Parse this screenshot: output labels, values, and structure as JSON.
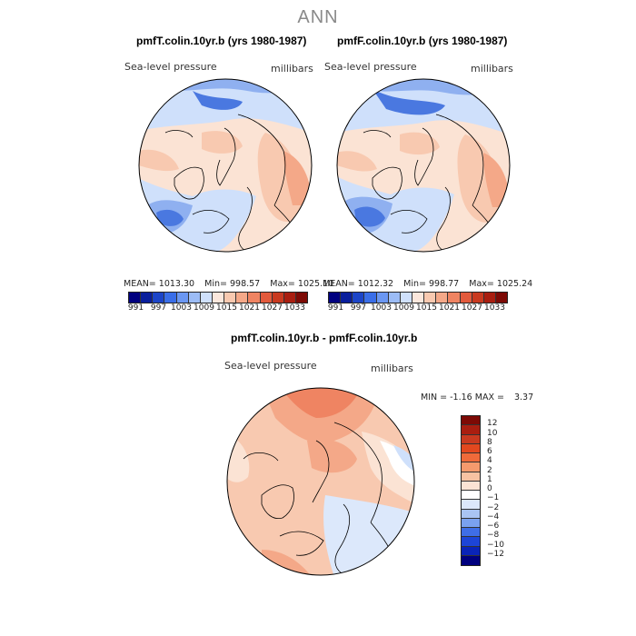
{
  "title": "ANN",
  "panels": [
    {
      "title": "pmfT.colin.10yr.b (yrs 1980-1987)",
      "variable": "Sea-level pressure",
      "units": "millibars",
      "mean_label": "MEAN=",
      "mean": "1013.30",
      "min_label": "Min=",
      "min": "998.57",
      "max_label": "Max=",
      "max": "1025.10"
    },
    {
      "title": "pmfF.colin.10yr.b (yrs 1980-1987)",
      "variable": "Sea-level pressure",
      "units": "millibars",
      "mean_label": "MEAN=",
      "mean": "1012.32",
      "min_label": "Min=",
      "min": "998.77",
      "max_label": "Max=",
      "max": "1025.24"
    }
  ],
  "top_colorbar": {
    "colors": [
      "#00007f",
      "#0a1f9c",
      "#1c45c8",
      "#3a6ee8",
      "#6b97f2",
      "#9cbcf6",
      "#cfe0fb",
      "#fbe7dc",
      "#f8c9b0",
      "#f4a888",
      "#ef8462",
      "#e25a3c",
      "#c93a20",
      "#a91e10",
      "#7d0a05"
    ],
    "labels": [
      "991",
      "997",
      "1003",
      "1009",
      "1015",
      "1021",
      "1027",
      "1033"
    ]
  },
  "diff_panel": {
    "title": "pmfT.colin.10yr.b - pmfF.colin.10yr.b",
    "variable": "Sea-level pressure",
    "units": "millibars",
    "min_label": "MIN =",
    "min": "-1.16",
    "max_label": "MAX =",
    "max": "3.37"
  },
  "diff_colorbar": {
    "colors": [
      "#7d0a05",
      "#a91e10",
      "#c93a20",
      "#e2481f",
      "#ef6a3a",
      "#f59a6d",
      "#f8c2a2",
      "#fbe3d4",
      "#ffffff",
      "#dce8fb",
      "#a9c4f3",
      "#7aa1ef",
      "#3f6ee6",
      "#1d45d6",
      "#0a24b8",
      "#00007f"
    ],
    "labels": [
      "12",
      "10",
      "8",
      "6",
      "4",
      "2",
      "1",
      "0",
      "−1",
      "−2",
      "−4",
      "−6",
      "−8",
      "−10",
      "−12"
    ]
  },
  "map_colors": {
    "land_outline": "#000000",
    "deep_blue": "#4a78e0",
    "mid_blue": "#8fb0f0",
    "light_blue": "#cfe0fb",
    "light_peach": "#fbe3d4",
    "peach": "#f8c9b0",
    "salmon": "#f4a888",
    "coral": "#ef8462"
  }
}
